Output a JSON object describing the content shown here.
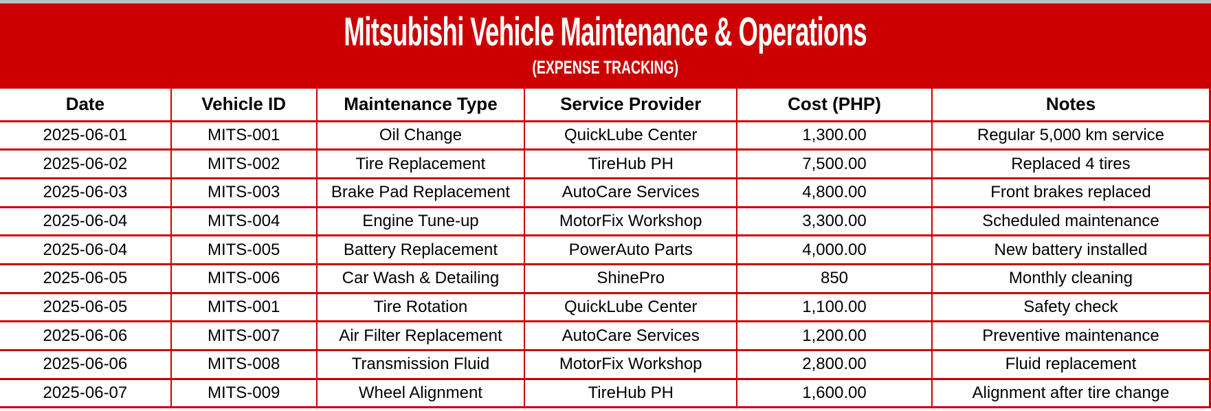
{
  "colors": {
    "accent": "#cc0000",
    "edge_strip": "#b6c2c8",
    "header_text": "#ffffff",
    "cell_text": "#000000"
  },
  "header": {
    "title": "Mitsubishi Vehicle Maintenance & Operations",
    "subtitle": "(EXPENSE TRACKING)"
  },
  "table": {
    "columns": [
      "Date",
      "Vehicle ID",
      "Maintenance Type",
      "Service Provider",
      "Cost (PHP)",
      "Notes"
    ],
    "rows": [
      [
        "2025-06-01",
        "MITS-001",
        "Oil Change",
        "QuickLube Center",
        "1,300.00",
        "Regular 5,000 km service"
      ],
      [
        "2025-06-02",
        "MITS-002",
        "Tire Replacement",
        "TireHub PH",
        "7,500.00",
        "Replaced 4 tires"
      ],
      [
        "2025-06-03",
        "MITS-003",
        "Brake Pad Replacement",
        "AutoCare Services",
        "4,800.00",
        "Front brakes replaced"
      ],
      [
        "2025-06-04",
        "MITS-004",
        "Engine Tune-up",
        "MotorFix Workshop",
        "3,300.00",
        "Scheduled maintenance"
      ],
      [
        "2025-06-04",
        "MITS-005",
        "Battery Replacement",
        "PowerAuto Parts",
        "4,000.00",
        "New battery installed"
      ],
      [
        "2025-06-05",
        "MITS-006",
        "Car Wash & Detailing",
        "ShinePro",
        "850",
        "Monthly cleaning"
      ],
      [
        "2025-06-05",
        "MITS-001",
        "Tire Rotation",
        "QuickLube Center",
        "1,100.00",
        "Safety check"
      ],
      [
        "2025-06-06",
        "MITS-007",
        "Air Filter Replacement",
        "AutoCare Services",
        "1,200.00",
        "Preventive maintenance"
      ],
      [
        "2025-06-06",
        "MITS-008",
        "Transmission Fluid",
        "MotorFix Workshop",
        "2,800.00",
        "Fluid replacement"
      ],
      [
        "2025-06-07",
        "MITS-009",
        "Wheel Alignment",
        "TireHub PH",
        "1,600.00",
        "Alignment after tire change"
      ]
    ]
  }
}
